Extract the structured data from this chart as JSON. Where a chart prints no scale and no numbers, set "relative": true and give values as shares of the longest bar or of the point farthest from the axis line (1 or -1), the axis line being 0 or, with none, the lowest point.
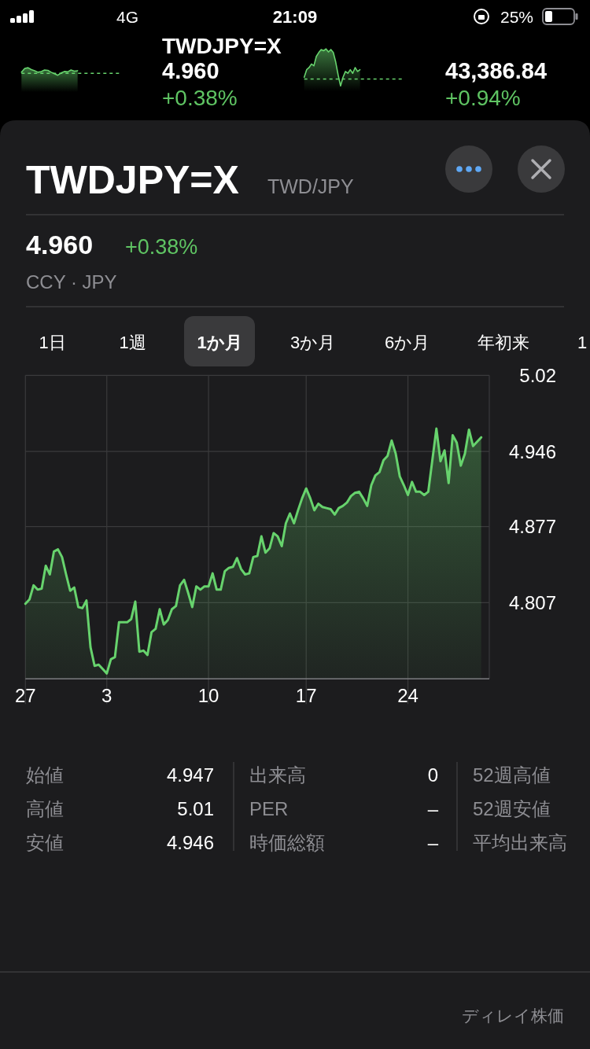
{
  "chart_data": [
    {
      "type": "other",
      "annotations": [
        "4G",
        "21:09",
        "25%"
      ]
    },
    {
      "type": "area",
      "relative": true,
      "categories": [
        null,
        null,
        null,
        null,
        null,
        null,
        null,
        null,
        null,
        null,
        null,
        null,
        null,
        null,
        null,
        null,
        null,
        null,
        null,
        null,
        null,
        null,
        null,
        null,
        null,
        null,
        null,
        null,
        null,
        null,
        null
      ],
      "values": [
        0.2,
        0.87,
        1,
        0.67,
        0.47,
        0.2,
        0.33,
        0.6,
        0.53,
        0.2,
        -0.07,
        -0.33,
        0.07,
        0.33,
        0.27,
        0.6,
        0.4,
        0.47,
        null,
        null,
        null,
        null,
        null,
        null,
        null,
        null,
        null,
        null,
        null,
        null,
        null
      ],
      "color": "#67d36d",
      "ref_lines": [
        {
          "axis": "y",
          "value": 0,
          "color": "#67d36d",
          "line_style": "dashed"
        }
      ]
    },
    {
      "type": "other",
      "title": "TWDJPY=X",
      "annotations": [
        "4.960",
        "+0.38%"
      ]
    },
    {
      "type": "area",
      "relative": true,
      "categories": [
        null,
        null,
        null,
        null,
        null,
        null,
        null,
        null,
        null,
        null,
        null,
        null,
        null,
        null,
        null,
        null,
        null,
        null,
        null,
        null,
        null,
        null,
        null,
        null,
        null,
        null,
        null,
        null,
        null,
        null,
        null,
        null,
        null,
        null,
        null,
        null,
        null,
        null,
        null,
        null,
        null,
        null
      ],
      "values": [
        0.06,
        0.31,
        0.38,
        0.5,
        0.44,
        0.75,
        0.88,
        0.98,
        0.94,
        1,
        0.9,
        0.98,
        0.88,
        0.56,
        0.13,
        -0.23,
        0.06,
        0.25,
        0.19,
        0.31,
        0.19,
        0.38,
        0.25,
        0.31,
        null,
        null,
        null,
        null,
        null,
        null,
        null,
        null,
        null,
        null,
        null,
        null,
        null,
        null,
        null,
        null,
        null,
        null
      ],
      "color": "#67d36d",
      "ref_lines": [
        {
          "axis": "y",
          "value": 0,
          "color": "#67d36d",
          "line_style": "dashed"
        }
      ]
    },
    {
      "type": "other",
      "annotations": [
        "43,386.84",
        "+0.94%"
      ]
    },
    {
      "type": "area",
      "title": "TWDJPY=X",
      "subtitle": "TWD/JPY",
      "annotations": [
        "4.960",
        "+0.38%",
        "CCY · JPY",
        "1日",
        "1週",
        "1か月",
        "3か月",
        "6か月",
        "年初来",
        "1",
        "始値",
        "4.947",
        "出来高",
        "0",
        "52週高値",
        "高値",
        "5.01",
        "PER",
        "–",
        "52週安値",
        "安値",
        "4.946",
        "時価総額",
        "–",
        "平均出来高",
        "ディレイ株価"
      ],
      "categories": [
        "27",
        null,
        null,
        null,
        null,
        null,
        null,
        null,
        null,
        null,
        null,
        null,
        null,
        null,
        null,
        null,
        null,
        null,
        null,
        null,
        "3",
        null,
        null,
        null,
        null,
        null,
        null,
        null,
        null,
        null,
        null,
        null,
        null,
        null,
        null,
        null,
        null,
        null,
        null,
        null,
        null,
        null,
        null,
        null,
        null,
        "10",
        null,
        null,
        null,
        null,
        null,
        null,
        null,
        null,
        null,
        null,
        null,
        null,
        null,
        null,
        null,
        null,
        null,
        null,
        null,
        null,
        null,
        null,
        null,
        "17",
        null,
        null,
        null,
        null,
        null,
        null,
        null,
        null,
        null,
        null,
        null,
        null,
        null,
        null,
        null,
        null,
        null,
        null,
        null,
        null,
        null,
        null,
        null,
        null,
        "24",
        null,
        null,
        null,
        null,
        null,
        null,
        null,
        null,
        null,
        null,
        null,
        null,
        null,
        null,
        null,
        null,
        null,
        null
      ],
      "values": [
        4.806,
        4.81,
        4.823,
        4.819,
        4.82,
        4.841,
        4.833,
        4.854,
        4.856,
        4.849,
        4.833,
        4.818,
        4.821,
        4.803,
        4.802,
        4.809,
        4.766,
        4.749,
        4.75,
        4.746,
        4.742,
        4.755,
        4.757,
        4.789,
        4.789,
        4.789,
        4.792,
        4.808,
        4.762,
        4.763,
        4.759,
        4.78,
        4.783,
        4.801,
        4.787,
        4.791,
        4.801,
        4.804,
        4.823,
        4.828,
        4.816,
        4.803,
        4.822,
        4.819,
        4.822,
        4.822,
        4.834,
        4.819,
        4.819,
        4.836,
        4.839,
        4.84,
        4.848,
        4.838,
        4.833,
        4.834,
        4.849,
        4.85,
        4.868,
        4.853,
        4.857,
        4.871,
        4.868,
        4.859,
        4.88,
        4.889,
        4.88,
        4.892,
        4.903,
        4.912,
        4.903,
        4.892,
        4.898,
        4.895,
        4.894,
        4.893,
        4.888,
        4.894,
        4.896,
        4.899,
        4.905,
        4.908,
        4.909,
        4.903,
        4.896,
        4.915,
        4.924,
        4.927,
        4.938,
        4.942,
        4.956,
        4.944,
        4.923,
        4.915,
        4.906,
        4.918,
        4.909,
        4.909,
        4.906,
        4.909,
        4.938,
        4.967,
        4.937,
        4.947,
        4.917,
        4.961,
        4.954,
        4.933,
        4.944,
        4.966,
        4.951,
        4.955,
        4.959
      ],
      "color": "#67d36d",
      "ylim": [
        4.737,
        5.016
      ],
      "yticks": [
        {
          "value": 5.016,
          "label": "5.02"
        },
        4.946,
        4.877,
        4.807
      ],
      "grid": true
    }
  ]
}
